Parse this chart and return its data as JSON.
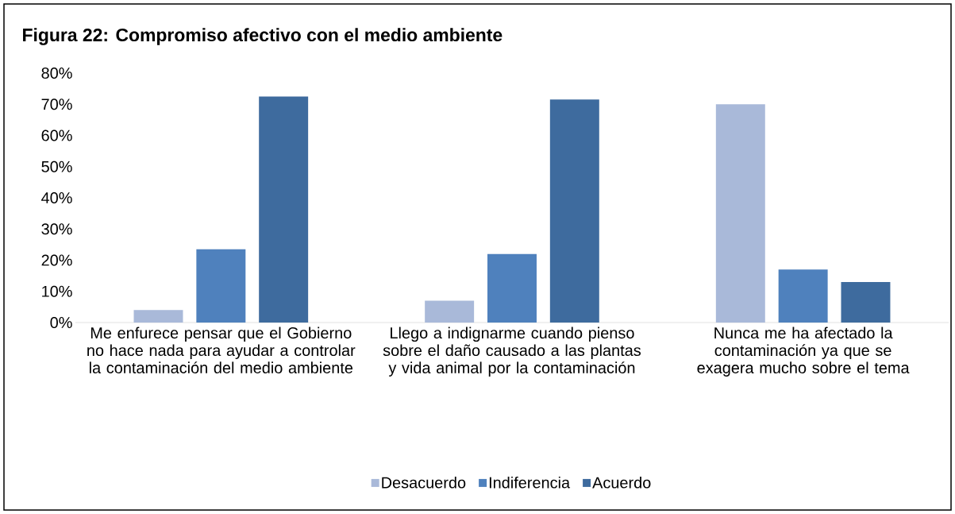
{
  "chart_data": {
    "type": "bar",
    "title": "Figura 22: Compromiso afectivo con el medio ambiente",
    "categories": [
      "Me enfurece pensar que el Gobierno no hace nada para ayudar a controlar la contaminación del medio ambiente",
      "Llego a indignarme cuando pienso sobre el daño causado a las plantas y vida animal por la contaminación",
      "Nunca me ha afectado la contaminación ya que se exagera mucho sobre el tema"
    ],
    "series": [
      {
        "name": "Desacuerdo",
        "color": "#a9b9d9",
        "values": [
          4,
          7,
          70
        ]
      },
      {
        "name": "Indiferencia",
        "color": "#4f81bd",
        "values": [
          23.5,
          22,
          17
        ]
      },
      {
        "name": "Acuerdo",
        "color": "#3e6b9e",
        "values": [
          72.5,
          71.5,
          13
        ]
      }
    ],
    "ylim": [
      0,
      80
    ],
    "yticks": [
      {
        "value": 0,
        "label": "0%"
      },
      {
        "value": 10,
        "label": "10%"
      },
      {
        "value": 20,
        "label": "20%"
      },
      {
        "value": 30,
        "label": "30%"
      },
      {
        "value": 40,
        "label": "40%"
      },
      {
        "value": 50,
        "label": "50%"
      },
      {
        "value": 60,
        "label": "60%"
      },
      {
        "value": 70,
        "label": "70%"
      },
      {
        "value": 80,
        "label": "80%"
      }
    ],
    "legend": "bottom"
  }
}
